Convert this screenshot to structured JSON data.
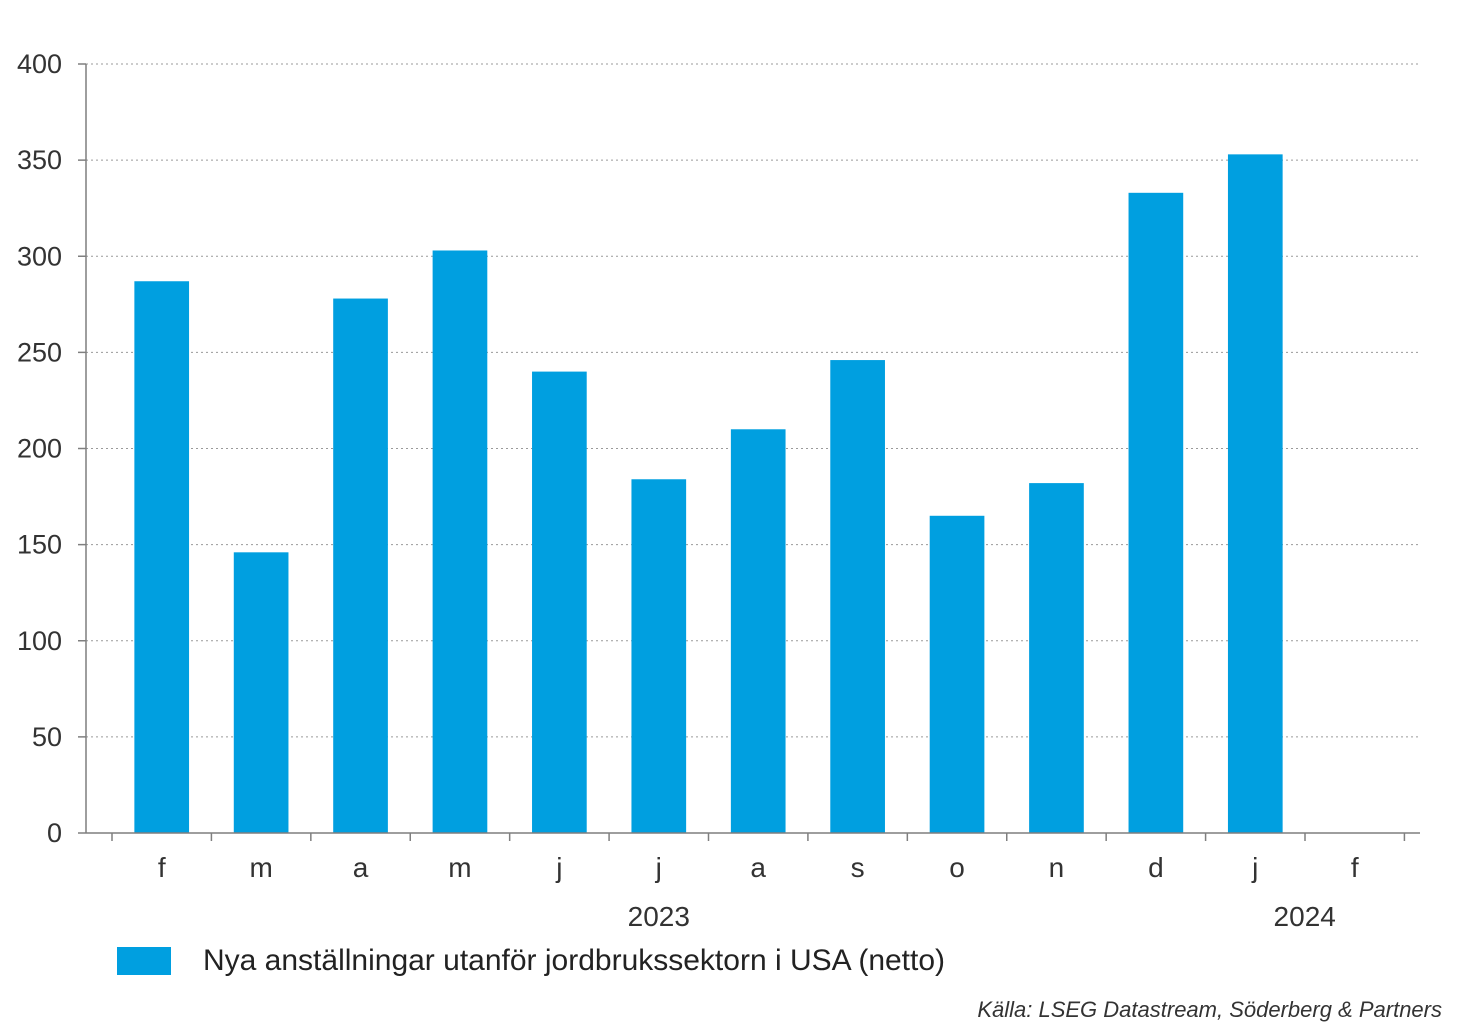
{
  "chart_data": {
    "type": "bar",
    "categories": [
      "f",
      "m",
      "a",
      "m",
      "j",
      "j",
      "a",
      "s",
      "o",
      "n",
      "d",
      "j",
      "f"
    ],
    "series": [
      {
        "name": "Nya anställningar utanför jordbrukssektorn i USA (netto)",
        "values": [
          287,
          146,
          278,
          303,
          240,
          184,
          210,
          246,
          165,
          182,
          333,
          353,
          null
        ],
        "color": "#009FE0"
      }
    ],
    "year_labels": [
      {
        "label": "2023",
        "category_index": 5
      },
      {
        "label": "2024",
        "category_index": 12
      }
    ],
    "yticks": [
      0,
      50,
      100,
      150,
      200,
      250,
      300,
      350,
      400
    ],
    "ylim": [
      0,
      400
    ],
    "grid": true,
    "legend_position": "bottom-left",
    "source": "Källa: LSEG Datastream, Söderberg & Partners"
  }
}
